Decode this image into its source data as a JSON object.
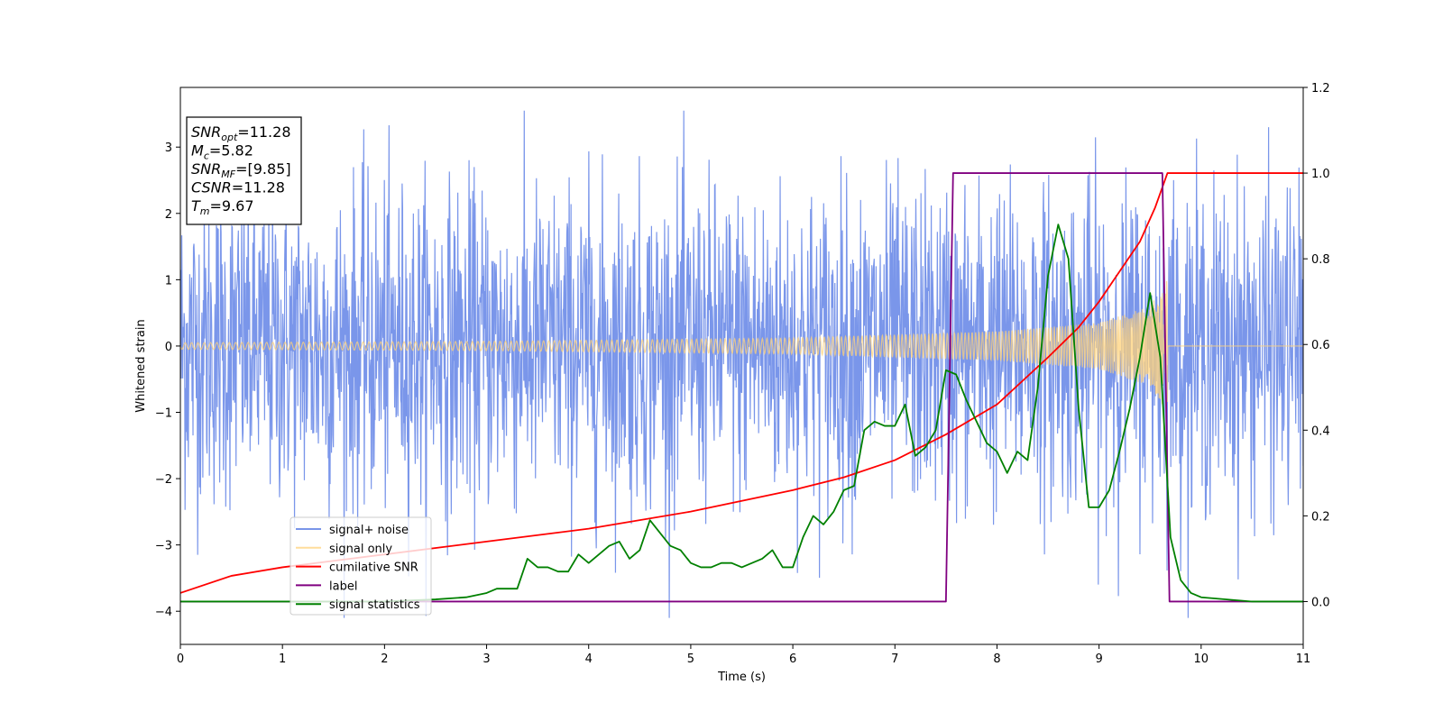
{
  "chart_data": {
    "type": "line",
    "title": "",
    "xlabel": "Time (s)",
    "ylabel": "Whitened strain",
    "xlim": [
      0,
      11
    ],
    "ylim": [
      -4.5,
      3.9
    ],
    "y2lim": [
      -0.1,
      1.2
    ],
    "xticks": [
      "0",
      "1",
      "2",
      "3",
      "4",
      "5",
      "6",
      "7",
      "8",
      "9",
      "10",
      "11"
    ],
    "yticks": [
      "−4",
      "−3",
      "−2",
      "−1",
      "0",
      "1",
      "2",
      "3"
    ],
    "y2ticks": [
      "0.0",
      "0.2",
      "0.4",
      "0.6",
      "0.8",
      "1.0",
      "1.2"
    ],
    "legend_position": "lower-left",
    "annotation": {
      "lines": [
        {
          "sym": "SNR",
          "sub": "opt",
          "val": "=11.28"
        },
        {
          "sym": "M",
          "sub": "c",
          "val": "=5.82"
        },
        {
          "sym": "SNR",
          "sub": "MF",
          "val": "=[9.85]"
        },
        {
          "sym": "CSNR",
          "sub": "",
          "val": "=11.28"
        },
        {
          "sym": "T",
          "sub": "m",
          "val": "=9.67"
        }
      ]
    },
    "series": [
      {
        "name": "signal+ noise",
        "color": "#4169e1",
        "axis": "left",
        "kind": "whitened noise, amplitude about ±2.3 with peaks to about ±3.5, from 0 to 11 s",
        "envelope": [
          [
            0,
            1.2
          ],
          [
            9.7,
            1.2
          ],
          [
            11,
            1.2
          ]
        ]
      },
      {
        "name": "signal only",
        "color": "#ffd27a",
        "axis": "left",
        "kind": "chirp ending at merger 9.67 s, amplitude envelope",
        "envelope": [
          [
            0,
            0.05
          ],
          [
            3,
            0.07
          ],
          [
            6,
            0.12
          ],
          [
            8,
            0.22
          ],
          [
            9,
            0.35
          ],
          [
            9.5,
            0.6
          ],
          [
            9.67,
            1.0
          ],
          [
            9.7,
            0
          ],
          [
            11,
            0
          ]
        ]
      },
      {
        "name": "cumilative SNR",
        "color": "#ff0000",
        "axis": "right",
        "x": [
          0,
          0.5,
          1,
          2,
          3,
          4,
          5,
          6,
          6.5,
          7,
          7.5,
          8,
          8.5,
          8.8,
          9,
          9.2,
          9.4,
          9.55,
          9.67,
          9.7,
          11
        ],
        "y": [
          0.02,
          0.06,
          0.08,
          0.11,
          0.14,
          0.17,
          0.21,
          0.26,
          0.29,
          0.33,
          0.39,
          0.46,
          0.57,
          0.64,
          0.7,
          0.77,
          0.84,
          0.92,
          1.0,
          1.0,
          1.0
        ]
      },
      {
        "name": "label",
        "color": "#800080",
        "axis": "right",
        "x": [
          0,
          7.5,
          7.57,
          9.62,
          9.69,
          11
        ],
        "y": [
          0,
          0,
          1,
          1,
          0,
          0
        ]
      },
      {
        "name": "signal statistics",
        "color": "#008000",
        "axis": "right",
        "x": [
          0,
          0.5,
          1,
          1.5,
          2,
          2.5,
          2.8,
          3.0,
          3.1,
          3.2,
          3.3,
          3.4,
          3.5,
          3.6,
          3.7,
          3.8,
          3.9,
          4.0,
          4.1,
          4.2,
          4.3,
          4.4,
          4.5,
          4.6,
          4.7,
          4.8,
          4.9,
          5.0,
          5.1,
          5.2,
          5.3,
          5.4,
          5.5,
          5.6,
          5.7,
          5.8,
          5.9,
          6.0,
          6.1,
          6.2,
          6.3,
          6.4,
          6.5,
          6.6,
          6.7,
          6.8,
          6.9,
          7.0,
          7.1,
          7.2,
          7.3,
          7.4,
          7.5,
          7.6,
          7.7,
          7.8,
          7.9,
          8.0,
          8.1,
          8.2,
          8.3,
          8.4,
          8.5,
          8.6,
          8.7,
          8.8,
          8.9,
          9.0,
          9.1,
          9.2,
          9.3,
          9.4,
          9.5,
          9.6,
          9.7,
          9.8,
          9.9,
          10.0,
          10.5,
          11
        ],
        "y": [
          0,
          0,
          0,
          0,
          0,
          0.005,
          0.01,
          0.02,
          0.03,
          0.03,
          0.03,
          0.1,
          0.08,
          0.08,
          0.07,
          0.07,
          0.11,
          0.09,
          0.11,
          0.13,
          0.14,
          0.1,
          0.12,
          0.19,
          0.16,
          0.13,
          0.12,
          0.09,
          0.08,
          0.08,
          0.09,
          0.09,
          0.08,
          0.09,
          0.1,
          0.12,
          0.08,
          0.08,
          0.15,
          0.2,
          0.18,
          0.21,
          0.26,
          0.27,
          0.4,
          0.42,
          0.41,
          0.41,
          0.46,
          0.34,
          0.36,
          0.4,
          0.54,
          0.53,
          0.47,
          0.42,
          0.37,
          0.35,
          0.3,
          0.35,
          0.33,
          0.5,
          0.76,
          0.88,
          0.8,
          0.45,
          0.22,
          0.22,
          0.26,
          0.35,
          0.45,
          0.57,
          0.72,
          0.57,
          0.15,
          0.05,
          0.02,
          0.01,
          0,
          0
        ]
      }
    ]
  }
}
